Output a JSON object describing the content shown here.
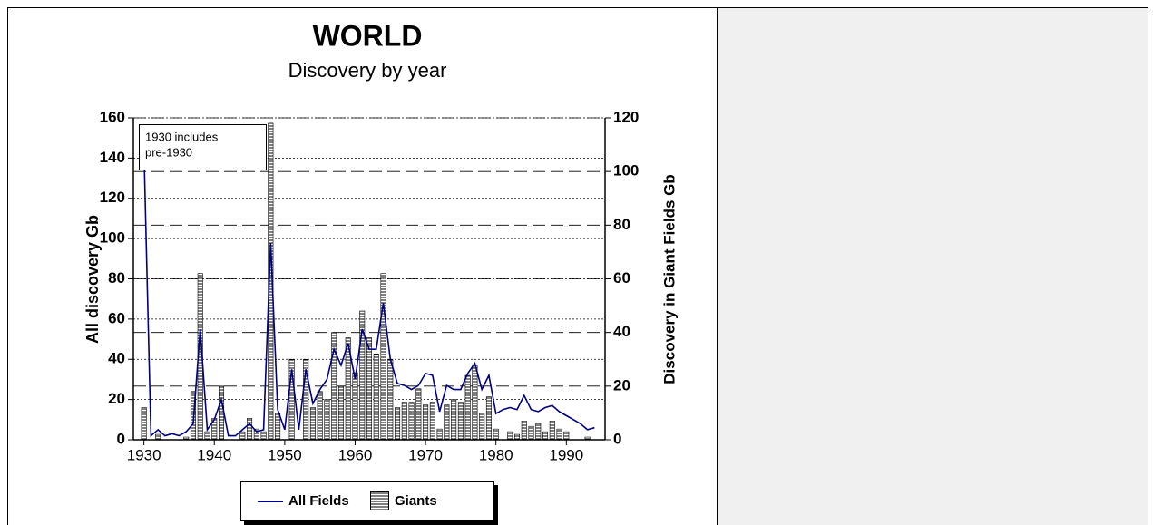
{
  "chart_data": {
    "type": "combo",
    "title": "WORLD",
    "subtitle": "Discovery by year",
    "annotation": [
      "1930  includes",
      "pre-1930"
    ],
    "y_label": "All discovery Gb",
    "y2_label": "Discovery in Giant Fields Gb",
    "x": [
      1930,
      1931,
      1932,
      1933,
      1934,
      1935,
      1936,
      1937,
      1938,
      1939,
      1940,
      1941,
      1942,
      1943,
      1944,
      1945,
      1946,
      1947,
      1948,
      1949,
      1950,
      1951,
      1952,
      1953,
      1954,
      1955,
      1956,
      1957,
      1958,
      1959,
      1960,
      1961,
      1962,
      1963,
      1964,
      1965,
      1966,
      1967,
      1968,
      1969,
      1970,
      1971,
      1972,
      1973,
      1974,
      1975,
      1976,
      1977,
      1978,
      1979,
      1980,
      1981,
      1982,
      1983,
      1984,
      1985,
      1986,
      1987,
      1988,
      1989,
      1990,
      1991,
      1992,
      1993,
      1994
    ],
    "series": [
      {
        "name": "All Fields",
        "type": "line",
        "axis": "y",
        "color": "#000080",
        "values": [
          145,
          2,
          5,
          2,
          3,
          2,
          4,
          8,
          55,
          5,
          10,
          20,
          2,
          2,
          5,
          8,
          4,
          5,
          98,
          15,
          5,
          35,
          5,
          35,
          18,
          25,
          30,
          45,
          37,
          48,
          30,
          55,
          45,
          45,
          68,
          40,
          28,
          27,
          25,
          27,
          33,
          32,
          14,
          27,
          25,
          25,
          33,
          38,
          25,
          32,
          13,
          15,
          16,
          15,
          22,
          15,
          14,
          16,
          17,
          14,
          12,
          10,
          8,
          5,
          6
        ]
      },
      {
        "name": "Giants",
        "type": "bar",
        "axis": "y2",
        "color": "#000000",
        "values": [
          12,
          0,
          2,
          0,
          0,
          0,
          1,
          18,
          62,
          3,
          8,
          20,
          0,
          0,
          3,
          8,
          4,
          3,
          118,
          10,
          0,
          30,
          0,
          30,
          12,
          18,
          15,
          40,
          20,
          38,
          25,
          48,
          38,
          32,
          62,
          30,
          12,
          14,
          14,
          19,
          13,
          14,
          4,
          13,
          15,
          14,
          24,
          28,
          10,
          16,
          4,
          0,
          3,
          2,
          7,
          5,
          6,
          3,
          7,
          4,
          3,
          0,
          0,
          1,
          0
        ]
      }
    ],
    "xlim": [
      1928.5,
      1995.5
    ],
    "xticks": [
      1930,
      1940,
      1950,
      1960,
      1970,
      1980,
      1990
    ],
    "ylim": [
      0,
      160
    ],
    "yticks": [
      0,
      20,
      40,
      60,
      80,
      100,
      120,
      140,
      160
    ],
    "y2lim": [
      0,
      120
    ],
    "y2ticks": [
      0,
      20,
      40,
      60,
      80,
      100,
      120
    ],
    "grid": true,
    "legend": "bottom"
  }
}
